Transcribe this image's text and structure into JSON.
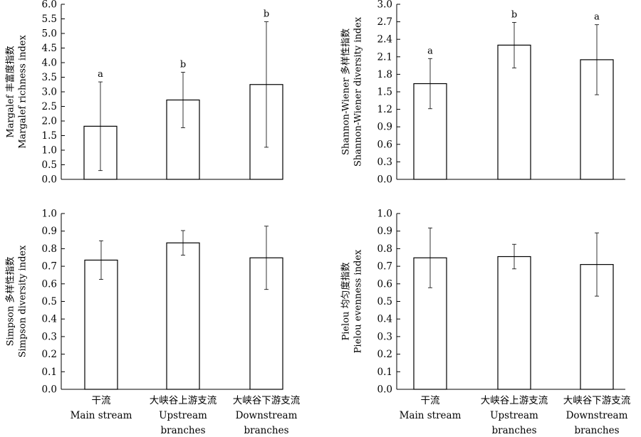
{
  "chart_data": [
    {
      "type": "bar",
      "panel": "top-left",
      "ylabel_lines": [
        "Margalef 丰富度指数",
        "Margalef richness index"
      ],
      "ylim": [
        0,
        6.0
      ],
      "ytick_step": 0.5,
      "ytick_decimals": 1,
      "categories": [
        "干流 Main stream",
        "大峡谷上游支流 Upstream branches",
        "大峡谷下游支流 Downstream branches"
      ],
      "values": [
        1.82,
        2.72,
        3.25
      ],
      "errors": [
        1.52,
        0.95,
        2.15
      ],
      "labels": [
        "a",
        "b",
        "b"
      ]
    },
    {
      "type": "bar",
      "panel": "top-right",
      "ylabel_lines": [
        "Shannon-Wiener 多样性指数",
        "Shannon-Wiener diversity index"
      ],
      "ylim": [
        0,
        3.0
      ],
      "ytick_step": 0.3,
      "ytick_decimals": 1,
      "categories": [
        "干流 Main stream",
        "大峡谷上游支流 Upstream branches",
        "大峡谷下游支流 Downstream branches"
      ],
      "values": [
        1.64,
        2.3,
        2.05
      ],
      "errors": [
        0.43,
        0.39,
        0.6
      ],
      "labels": [
        "a",
        "b",
        "a"
      ]
    },
    {
      "type": "bar",
      "panel": "bottom-left",
      "ylabel_lines": [
        "Simpson 多样性指数",
        "Simpson diversity index"
      ],
      "ylim": [
        0,
        1.0
      ],
      "ytick_step": 0.1,
      "ytick_decimals": 1,
      "categories": [
        "干流 Main stream",
        "大峡谷上游支流 Upstream branches",
        "大峡谷下游支流 Downstream branches"
      ],
      "values": [
        0.735,
        0.833,
        0.748
      ],
      "errors": [
        0.11,
        0.07,
        0.18
      ],
      "labels": [
        "",
        "",
        ""
      ]
    },
    {
      "type": "bar",
      "panel": "bottom-right",
      "ylabel_lines": [
        "Pielou 均匀度指数",
        "Pielou evenness index"
      ],
      "ylim": [
        0,
        1.0
      ],
      "ytick_step": 0.1,
      "ytick_decimals": 1,
      "categories": [
        "干流 Main stream",
        "大峡谷上游支流 Upstream branches",
        "大峡谷下游支流 Downstream branches"
      ],
      "values": [
        0.748,
        0.755,
        0.71
      ],
      "errors": [
        0.17,
        0.07,
        0.18
      ],
      "labels": [
        "",
        "",
        ""
      ]
    }
  ],
  "x_labels": [
    [
      "干流",
      "Main stream"
    ],
    [
      "大峡谷上游支流",
      "Upstream",
      "branches"
    ],
    [
      "大峡谷下游支流",
      "Downstream",
      "branches"
    ]
  ]
}
